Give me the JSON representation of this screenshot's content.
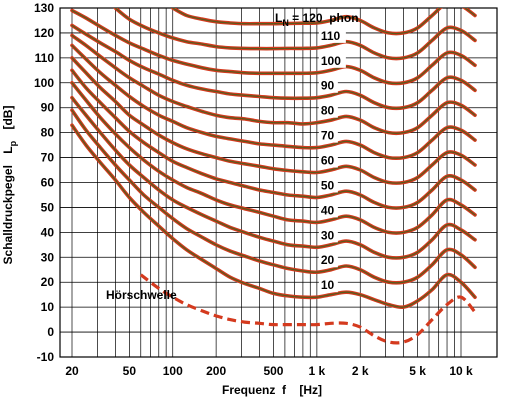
{
  "chart_data": {
    "type": "line",
    "xscale": "log",
    "xlim": [
      20,
      13000
    ],
    "ylim": [
      -10,
      130
    ],
    "grid": true,
    "xlabel": "Frequenz  f    [Hz]",
    "ylabel": "Schalldruckpegel  Lp  [dB]",
    "ylabel_main": "Schalldruckpegel",
    "ylabel_symbol": "L",
    "ylabel_subscript": "p",
    "ylabel_unit": "[dB]",
    "colors": {
      "curve_outer": "#d43a1e",
      "curve_inner": "#5a5a1c",
      "grid": "#000000"
    },
    "x_ticks": [
      {
        "value": 20,
        "label": "20"
      },
      {
        "value": 50,
        "label": "50"
      },
      {
        "value": 100,
        "label": "100"
      },
      {
        "value": 200,
        "label": "200"
      },
      {
        "value": 500,
        "label": "500"
      },
      {
        "value": 1000,
        "label": "1 k"
      },
      {
        "value": 2000,
        "label": "2 k"
      },
      {
        "value": 5000,
        "label": "5 k"
      },
      {
        "value": 10000,
        "label": "10 k"
      }
    ],
    "y_ticks": [
      -10,
      0,
      10,
      20,
      30,
      40,
      50,
      60,
      70,
      80,
      90,
      100,
      110,
      120,
      130
    ],
    "curve_label_ln": "L",
    "curve_label_sub": "N",
    "curve_label_rest": " = 120  phon",
    "threshold_label": "Hörschwelle",
    "series": [
      {
        "label": "10",
        "x": [
          20,
          25,
          31.5,
          40,
          50,
          63,
          80,
          100,
          125,
          160,
          200,
          250,
          315,
          400,
          500,
          630,
          800,
          1000,
          1250,
          1600,
          2000,
          2500,
          3150,
          4000,
          5000,
          6300,
          8000,
          10000,
          12500
        ],
        "y": [
          83,
          75,
          68,
          61,
          54,
          48,
          42.5,
          37.5,
          33,
          29,
          25.5,
          22,
          19.5,
          17.5,
          15.5,
          14.5,
          14,
          14,
          15,
          16,
          15,
          13,
          11,
          10,
          12.5,
          17,
          23,
          20,
          14
        ]
      },
      {
        "label": "20",
        "x": [
          20,
          25,
          31.5,
          40,
          50,
          63,
          80,
          100,
          125,
          160,
          200,
          250,
          315,
          400,
          500,
          630,
          800,
          1000,
          1250,
          1600,
          2000,
          2500,
          3150,
          4000,
          5000,
          6300,
          8000,
          10000,
          12500
        ],
        "y": [
          89,
          81,
          74,
          67,
          61,
          55,
          50,
          45.5,
          41.5,
          38,
          35,
          32.5,
          30.5,
          28.5,
          27,
          25.5,
          24.5,
          24,
          25,
          26.5,
          25,
          22,
          20,
          20,
          22,
          27,
          33,
          31,
          26
        ]
      },
      {
        "label": "30",
        "x": [
          20,
          25,
          31.5,
          40,
          50,
          63,
          80,
          100,
          125,
          160,
          200,
          250,
          315,
          400,
          500,
          630,
          800,
          1000,
          1250,
          1600,
          2000,
          2500,
          3150,
          4000,
          5000,
          6300,
          8000,
          10000,
          12500
        ],
        "y": [
          94,
          87,
          80,
          73,
          67,
          62,
          57,
          53,
          50,
          47,
          44.5,
          42,
          40,
          38,
          36.5,
          35,
          34.5,
          34,
          35,
          36.5,
          35,
          32,
          30,
          30,
          32,
          37,
          43,
          41,
          37
        ]
      },
      {
        "label": "40",
        "x": [
          20,
          25,
          31.5,
          40,
          50,
          63,
          80,
          100,
          125,
          160,
          200,
          250,
          315,
          400,
          500,
          630,
          800,
          1000,
          1250,
          1600,
          2000,
          2500,
          3150,
          4000,
          5000,
          6300,
          8000,
          10000,
          12500
        ],
        "y": [
          100,
          93,
          86,
          79.5,
          74,
          69,
          64.5,
          61,
          58,
          55.5,
          53,
          51,
          49.5,
          48,
          46.5,
          45,
          44.5,
          44,
          45,
          46.5,
          45,
          42,
          40,
          40,
          42,
          47,
          53,
          51,
          47
        ]
      },
      {
        "label": "50",
        "x": [
          20,
          25,
          31.5,
          40,
          50,
          63,
          80,
          100,
          125,
          160,
          200,
          250,
          315,
          400,
          500,
          630,
          800,
          1000,
          1250,
          1600,
          2000,
          2500,
          3150,
          4000,
          5000,
          6300,
          8000,
          10000,
          12500
        ],
        "y": [
          105,
          98,
          92,
          86,
          80.5,
          76,
          72,
          68.5,
          66,
          63.5,
          61.5,
          60,
          58.5,
          57,
          56,
          55,
          54.5,
          54,
          55,
          56.5,
          55,
          52,
          50,
          50,
          52,
          57,
          62.5,
          61,
          57
        ]
      },
      {
        "label": "60",
        "x": [
          20,
          25,
          31.5,
          40,
          50,
          63,
          80,
          100,
          125,
          160,
          200,
          250,
          315,
          400,
          500,
          630,
          800,
          1000,
          1250,
          1600,
          2000,
          2500,
          3150,
          4000,
          5000,
          6300,
          8000,
          10000,
          12500
        ],
        "y": [
          110,
          104,
          98,
          92.5,
          87,
          83,
          79,
          76,
          73.5,
          71.5,
          70,
          68.5,
          67.5,
          66.5,
          65.5,
          64.8,
          64.3,
          64,
          65,
          66.5,
          65,
          62,
          60,
          60,
          62,
          67,
          72,
          71,
          67
        ]
      },
      {
        "label": "70",
        "x": [
          20,
          25,
          31.5,
          40,
          50,
          63,
          80,
          100,
          125,
          160,
          200,
          250,
          315,
          400,
          500,
          630,
          800,
          1000,
          1250,
          1600,
          2000,
          2500,
          3150,
          4000,
          5000,
          6300,
          8000,
          10000,
          12500
        ],
        "y": [
          115,
          109.5,
          104,
          99,
          94.5,
          90.5,
          87,
          84.5,
          82,
          80,
          78.5,
          77.5,
          76.5,
          75.5,
          75,
          74.5,
          74,
          74,
          75,
          76.5,
          75,
          72,
          70,
          70,
          72,
          77,
          82,
          81,
          77
        ]
      },
      {
        "label": "80",
        "x": [
          20,
          25,
          31.5,
          40,
          50,
          63,
          80,
          100,
          125,
          160,
          200,
          250,
          315,
          400,
          500,
          630,
          800,
          1000,
          1250,
          1600,
          2000,
          2500,
          3150,
          4000,
          5000,
          6300,
          8000,
          10000,
          12500
        ],
        "y": [
          119,
          115,
          110.5,
          106,
          102,
          98.5,
          95,
          92.5,
          90.5,
          88.5,
          87,
          86,
          85.5,
          84.5,
          84,
          84,
          83.5,
          84,
          85,
          86.5,
          85,
          82,
          80,
          80,
          82,
          87,
          92,
          91,
          87
        ]
      },
      {
        "label": "90",
        "x": [
          20,
          25,
          31.5,
          40,
          50,
          63,
          80,
          100,
          125,
          160,
          200,
          250,
          315,
          400,
          500,
          630,
          800,
          1000,
          1250,
          1600,
          2000,
          2500,
          3150,
          4000,
          5000,
          6300,
          8000,
          10000,
          12500
        ],
        "y": [
          123,
          119.5,
          116,
          112.5,
          109,
          106,
          103.5,
          101,
          99,
          97.5,
          96.5,
          95.5,
          95,
          94.5,
          94,
          93.8,
          93.8,
          94,
          95,
          96.5,
          95,
          92,
          90,
          90,
          92,
          97,
          102,
          101,
          97
        ]
      },
      {
        "label": "100",
        "x": [
          20,
          25,
          31.5,
          40,
          50,
          63,
          80,
          100,
          125,
          160,
          200,
          250,
          315,
          400,
          500,
          630,
          800,
          1000,
          1250,
          1600,
          2000,
          2500,
          3150,
          4000,
          5000,
          6300,
          8000,
          10000,
          12500
        ],
        "y": [
          129,
          126,
          122.5,
          119,
          116,
          113.5,
          111,
          109,
          107.5,
          106,
          105,
          104.5,
          104,
          103.8,
          103.8,
          103.8,
          103.8,
          104,
          105,
          106.5,
          105,
          102,
          100,
          100,
          102,
          107,
          112,
          111,
          107
        ]
      },
      {
        "label": "110",
        "x": [
          40,
          50,
          63,
          80,
          100,
          125,
          160,
          200,
          250,
          315,
          400,
          500,
          630,
          800,
          1000,
          1250,
          1600,
          2000,
          2500,
          3150,
          4000,
          5000,
          6300,
          8000,
          10000,
          12500
        ],
        "y": [
          130,
          125.5,
          122.5,
          120,
          118,
          116.5,
          115.5,
          114.5,
          114,
          113.8,
          113.7,
          113.7,
          113.8,
          113.8,
          114,
          115,
          116.5,
          115,
          112,
          110,
          110,
          112,
          117,
          122,
          121,
          117
        ]
      },
      {
        "label": "120",
        "x": [
          100,
          125,
          160,
          200,
          250,
          315,
          400,
          500,
          630,
          800,
          1000,
          1250,
          1600,
          2000,
          2500,
          3150,
          4000,
          5000,
          6300,
          8000,
          10000,
          12500
        ],
        "y": [
          130,
          127,
          125.5,
          124.5,
          124,
          123.7,
          123.7,
          123.7,
          123.8,
          123.9,
          124,
          125,
          126.5,
          125,
          122,
          120,
          120,
          122,
          127,
          132,
          131,
          127
        ]
      }
    ],
    "threshold": {
      "label": "Hörschwelle",
      "x": [
        60,
        80,
        100,
        125,
        160,
        200,
        250,
        315,
        400,
        500,
        630,
        800,
        1000,
        1250,
        1600,
        2000,
        2500,
        3150,
        4000,
        5000,
        6300,
        8000,
        10000,
        12500
      ],
      "y": [
        23,
        17.5,
        14,
        11,
        8.5,
        6.5,
        5,
        4,
        3.5,
        3,
        3,
        3,
        3,
        3.5,
        3.5,
        2,
        -1.5,
        -4,
        -4,
        -1,
        5,
        11,
        14,
        8
      ]
    }
  }
}
